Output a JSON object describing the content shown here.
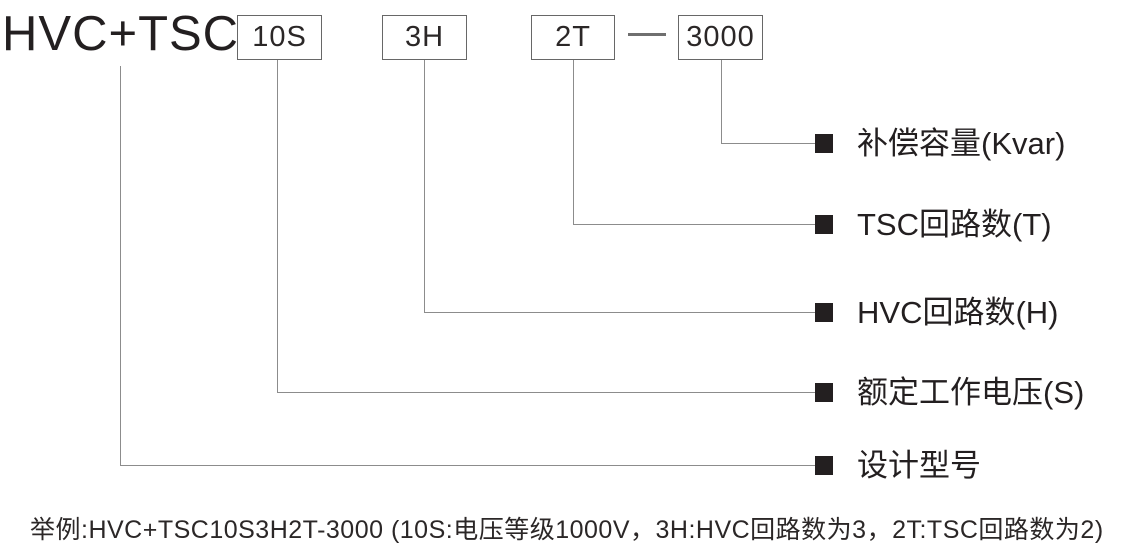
{
  "title": "HVC+TSC",
  "code_boxes": [
    {
      "label": "10S"
    },
    {
      "label": "3H"
    },
    {
      "label": "2T"
    },
    {
      "label": "3000"
    }
  ],
  "legend": [
    {
      "source": "3000",
      "label": "补偿容量(Kvar)"
    },
    {
      "source": "2T",
      "label": "TSC回路数(T)"
    },
    {
      "source": "3H",
      "label": "HVC回路数(H)"
    },
    {
      "source": "10S",
      "label": "额定工作电压(S)"
    },
    {
      "source": "HVC+TSC",
      "label": "设计型号"
    }
  ],
  "example": "举例:HVC+TSC10S3H2T-3000 (10S:电压等级1000V，3H:HVC回路数为3，2T:TSC回路数为2)",
  "colors": {
    "text": "#231f20",
    "line": "#8c8c8c",
    "box_border": "#676767",
    "bullet": "#231f20",
    "background": "#ffffff"
  }
}
